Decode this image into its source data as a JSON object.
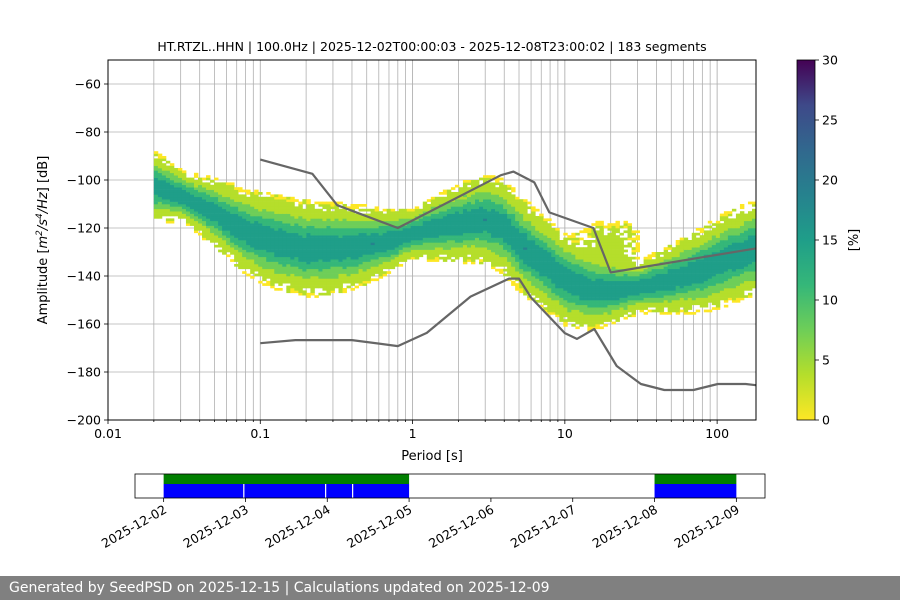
{
  "chart_data": {
    "type": "heatmap",
    "title": "HT.RTZL..HHN | 100.0Hz | 2025-12-02T00:00:03 - 2025-12-08T23:00:02 | 183 segments",
    "xlabel": "Period [s]",
    "ylabel_prefix": "Amplitude [",
    "ylabel_sup1": "m",
    "ylabel_sup2": "2",
    "ylabel_sup3": "/s",
    "ylabel_sup4": "4",
    "ylabel_sup5": "/Hz",
    "ylabel_suffix": "] [dB]",
    "xscale": "log",
    "xlim": [
      0.01,
      180
    ],
    "ylim": [
      -200,
      -50
    ],
    "xtick_labels": [
      "0.01",
      "0.1",
      "1",
      "10",
      "100"
    ],
    "xtick_values": [
      0.01,
      0.1,
      1,
      10,
      100
    ],
    "yticks": [
      -60,
      -80,
      -100,
      -120,
      -140,
      -160,
      -180,
      -200
    ],
    "colorbar": {
      "label": "[%]",
      "range": [
        0,
        30
      ],
      "ticks": [
        0,
        5,
        10,
        15,
        20,
        25,
        30
      ],
      "colormap": "viridis_r"
    },
    "grid": true,
    "nhnm": {
      "name": "NHNM",
      "x": [
        0.1,
        0.22,
        0.32,
        0.8,
        3.8,
        4.6,
        6.3,
        7.9,
        15.4,
        20,
        180
      ],
      "y": [
        -91.5,
        -97.4,
        -110.5,
        -120,
        -98,
        -96.5,
        -101,
        -113.5,
        -120,
        -138.5,
        -128.5
      ]
    },
    "nlnm": {
      "name": "NLNM",
      "x": [
        0.1,
        0.17,
        0.4,
        0.8,
        1.24,
        2.4,
        4.3,
        5,
        6,
        10,
        12,
        15.6,
        21.9,
        31.6,
        45,
        70,
        101,
        154,
        180
      ],
      "y": [
        -168,
        -166.7,
        -166.7,
        -169.2,
        -163.7,
        -148.6,
        -141.1,
        -141.1,
        -149,
        -163.8,
        -166.2,
        -162.1,
        -177.5,
        -185,
        -187.5,
        -187.5,
        -185,
        -185,
        -185.5
      ]
    },
    "psd_mode": {
      "x": [
        0.02,
        0.03,
        0.05,
        0.08,
        0.12,
        0.2,
        0.3,
        0.45,
        0.7,
        1.0,
        1.5,
        2.2,
        3.0,
        4.0,
        5.0,
        6.0,
        8.0,
        10.0,
        14.0,
        20.0,
        30.0,
        50.0,
        80.0,
        120.0,
        180.0
      ],
      "y": [
        -103,
        -107,
        -114,
        -122,
        -126,
        -129,
        -129,
        -128,
        -126,
        -123,
        -120,
        -118,
        -117,
        -120,
        -127,
        -131,
        -137,
        -142,
        -146,
        -146.5,
        -145.5,
        -142,
        -138,
        -133,
        -129
      ]
    },
    "timeline": {
      "date_labels": [
        "2025-12-02",
        "2025-12-03",
        "2025-12-04",
        "2025-12-05",
        "2025-12-06",
        "2025-12-07",
        "2025-12-08",
        "2025-12-09"
      ],
      "range_days": [
        -0.35,
        7.35
      ],
      "data_segments": [
        [
          0.0,
          3.0
        ],
        [
          6.0,
          7.0
        ]
      ],
      "psd_gaps": [
        0.98,
        1.98,
        2.31
      ],
      "data_color": "#007f00",
      "psd_color": "#0000ff"
    }
  },
  "footer": {
    "text": "Generated by SeedPSD on 2025-12-15 | Calculations updated on 2025-12-09"
  }
}
